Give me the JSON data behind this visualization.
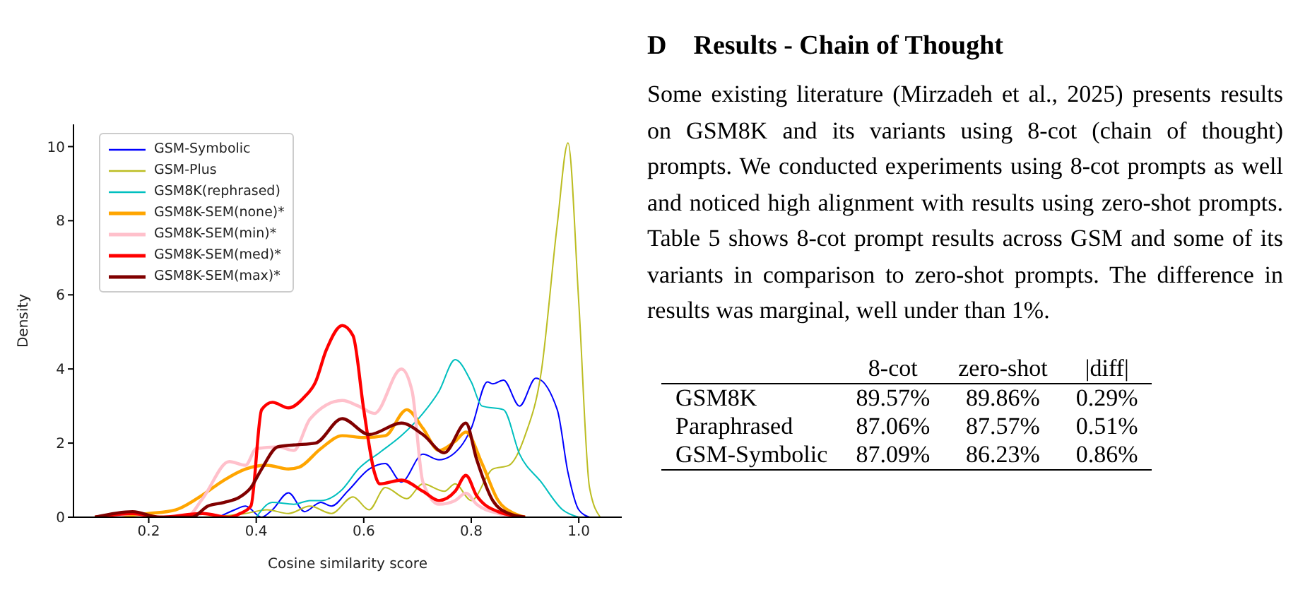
{
  "chart_data": {
    "type": "line",
    "xlabel": "Cosine similarity score",
    "ylabel": "Density",
    "xlim": [
      0.06,
      1.08
    ],
    "ylim": [
      0,
      10.6
    ],
    "xticks": [
      {
        "value": 0.2,
        "label": "0.2"
      },
      {
        "value": 0.4,
        "label": "0.4"
      },
      {
        "value": 0.6,
        "label": "0.6"
      },
      {
        "value": 0.8,
        "label": "0.8"
      },
      {
        "value": 1.0,
        "label": "1.0"
      }
    ],
    "yticks": [
      0,
      2,
      4,
      6,
      8,
      10
    ],
    "legend": "top left",
    "marker": "none",
    "line_style": "solid",
    "series": [
      {
        "name": "GSM-Symbolic",
        "color": "#0000ff",
        "x": [
          0.33,
          0.36,
          0.38,
          0.41,
          0.43,
          0.46,
          0.49,
          0.52,
          0.54,
          0.57,
          0.61,
          0.64,
          0.67,
          0.71,
          0.74,
          0.78,
          0.8,
          0.83,
          0.84,
          0.86,
          0.89,
          0.92,
          0.96,
          0.98,
          1.0,
          1.02
        ],
        "values": [
          0,
          0.2,
          0.3,
          0,
          0.2,
          0.66,
          0.15,
          0.4,
          0.3,
          0.7,
          1.3,
          1.45,
          0.95,
          1.7,
          1.55,
          1.9,
          2.4,
          3.65,
          3.6,
          3.7,
          3.0,
          3.75,
          2.9,
          1.2,
          0.2,
          0
        ]
      },
      {
        "name": "GSM-Plus",
        "color": "#bcbd22",
        "x": [
          0.3,
          0.35,
          0.38,
          0.42,
          0.46,
          0.5,
          0.54,
          0.58,
          0.61,
          0.64,
          0.68,
          0.71,
          0.75,
          0.77,
          0.8,
          0.84,
          0.87,
          0.9,
          0.93,
          0.96,
          0.98,
          1.0,
          1.02,
          1.04
        ],
        "values": [
          0,
          0.05,
          0.1,
          0.2,
          0.1,
          0.3,
          0.1,
          0.55,
          0.2,
          0.8,
          0.5,
          0.9,
          0.7,
          0.9,
          0.45,
          1.3,
          1.4,
          2.2,
          3.9,
          7.9,
          10.1,
          5.8,
          0.8,
          0
        ]
      },
      {
        "name": "GSM8K(rephrased)",
        "color": "#00bfbf",
        "x": [
          0.4,
          0.43,
          0.47,
          0.5,
          0.52,
          0.56,
          0.59,
          0.63,
          0.67,
          0.71,
          0.74,
          0.77,
          0.8,
          0.82,
          0.86,
          0.89,
          0.93,
          0.97,
          1.0
        ],
        "values": [
          0,
          0.4,
          0.35,
          0.45,
          0.45,
          0.75,
          1.3,
          1.75,
          2.2,
          2.8,
          3.4,
          4.25,
          3.65,
          3.0,
          2.9,
          1.7,
          0.95,
          0.2,
          0
        ]
      },
      {
        "name": "GSM8K-SEM(none)*",
        "color": "#ffa500",
        "x": [
          0.1,
          0.2,
          0.25,
          0.3,
          0.34,
          0.38,
          0.42,
          0.46,
          0.48,
          0.52,
          0.56,
          0.6,
          0.64,
          0.68,
          0.71,
          0.74,
          0.77,
          0.79,
          0.82,
          0.85,
          0.88,
          0.9
        ],
        "values": [
          0,
          0.1,
          0.2,
          0.6,
          1.0,
          1.3,
          1.4,
          1.3,
          1.35,
          1.85,
          2.2,
          2.15,
          2.2,
          2.9,
          2.4,
          1.8,
          2.05,
          2.3,
          1.45,
          0.45,
          0.1,
          0
        ]
      },
      {
        "name": "GSM8K-SEM(min)*",
        "color": "#ffc0cb",
        "x": [
          0.13,
          0.17,
          0.22,
          0.27,
          0.3,
          0.35,
          0.38,
          0.4,
          0.44,
          0.47,
          0.5,
          0.56,
          0.59,
          0.62,
          0.67,
          0.69,
          0.71,
          0.74,
          0.77,
          0.79,
          0.81,
          0.85,
          0.88
        ],
        "values": [
          0,
          0.1,
          0,
          0,
          0.5,
          1.5,
          1.4,
          1.85,
          1.9,
          1.8,
          2.65,
          3.15,
          3.0,
          2.8,
          4.0,
          3.4,
          0.95,
          0.35,
          0.45,
          0.65,
          0.35,
          0.1,
          0
        ]
      },
      {
        "name": "GSM8K-SEM(med)*",
        "color": "#ff0000",
        "x": [
          0.1,
          0.17,
          0.22,
          0.3,
          0.35,
          0.37,
          0.39,
          0.41,
          0.43,
          0.46,
          0.49,
          0.51,
          0.53,
          0.56,
          0.58,
          0.6,
          0.62,
          0.63,
          0.67,
          0.71,
          0.74,
          0.77,
          0.79,
          0.81,
          0.85,
          0.9
        ],
        "values": [
          0,
          0.1,
          0,
          0.1,
          0,
          0.1,
          0.3,
          2.9,
          3.1,
          2.95,
          3.25,
          3.64,
          4.5,
          5.17,
          4.9,
          2.9,
          1.2,
          0.9,
          1.0,
          0.7,
          0.45,
          0.7,
          1.13,
          0.58,
          0.15,
          0
        ]
      },
      {
        "name": "GSM8K-SEM(max)*",
        "color": "#800000",
        "x": [
          0.1,
          0.17,
          0.22,
          0.28,
          0.31,
          0.34,
          0.37,
          0.39,
          0.41,
          0.44,
          0.47,
          0.51,
          0.56,
          0.61,
          0.67,
          0.71,
          0.75,
          0.79,
          0.81,
          0.84,
          0.87,
          0.9
        ],
        "values": [
          0,
          0.15,
          0,
          0,
          0.3,
          0.4,
          0.55,
          0.8,
          1.3,
          1.9,
          1.95,
          2.0,
          2.66,
          2.23,
          2.54,
          2.23,
          1.74,
          2.54,
          1.56,
          0.45,
          0.1,
          0
        ]
      }
    ],
    "annotations": [
      "D    Results - Chain of Thought",
      "Some existing literature (Mirzadeh et al., 2025) presents results on GSM8K and its variants using 8-cot (chain of thought) prompts. We conducted experiments using 8-cot prompts as well and noticed high alignment with results using zero-shot prompts. Table 5 shows 8-cot prompt results across GSM and some of its variants in comparison to zero-shot prompts. The difference in results was marginal, well under than 1%.",
      "\t8-cot\tzero-shot\t|diff|",
      "GSM8K\t89.57%\t89.86%\t0.29%",
      "Paraphrased\t87.06%\t87.57%\t0.51%",
      "GSM-Symbolic\t87.09%\t86.23%\t0.86%"
    ]
  }
}
